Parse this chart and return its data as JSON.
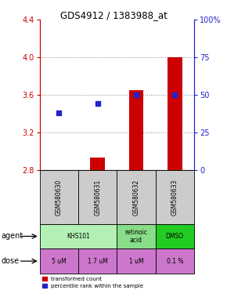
{
  "title": "GDS4912 / 1383988_at",
  "samples": [
    "GSM580630",
    "GSM580631",
    "GSM580632",
    "GSM580633"
  ],
  "bar_values": [
    2.802,
    2.93,
    3.65,
    4.0
  ],
  "bar_bottom": 2.8,
  "percentile_values": [
    38,
    44,
    50,
    50
  ],
  "ylim_left": [
    2.8,
    4.4
  ],
  "ylim_right": [
    0,
    100
  ],
  "yticks_left": [
    2.8,
    3.2,
    3.6,
    4.0,
    4.4
  ],
  "yticks_right": [
    0,
    25,
    50,
    75,
    100
  ],
  "ytick_labels_right": [
    "0",
    "25",
    "50",
    "75",
    "100%"
  ],
  "bar_color": "#cc0000",
  "scatter_color": "#2222cc",
  "agent_groups": [
    {
      "label": "KHS101",
      "start": 0,
      "end": 2,
      "color": "#b3f0b3"
    },
    {
      "label": "retinoic\nacid",
      "start": 2,
      "end": 3,
      "color": "#88dd88"
    },
    {
      "label": "DMSO",
      "start": 3,
      "end": 4,
      "color": "#22cc22"
    }
  ],
  "dose_labels": [
    "5 uM",
    "1.7 uM",
    "1 uM",
    "0.1 %"
  ],
  "dose_color": "#cc77cc",
  "sample_bg_color": "#cccccc",
  "grid_color": "#888888",
  "left_axis_color": "#cc0000",
  "right_axis_color": "#2222cc",
  "legend_red_label": "transformed count",
  "legend_blue_label": "percentile rank within the sample"
}
